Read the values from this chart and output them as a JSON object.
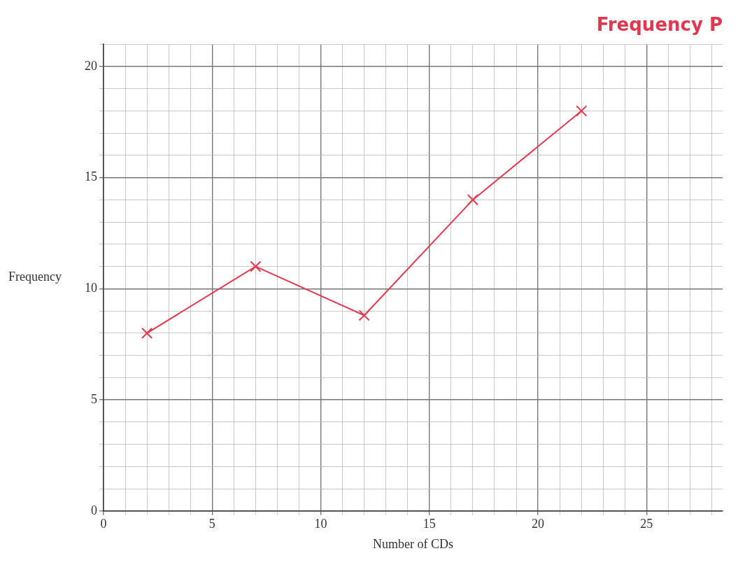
{
  "chart_data": {
    "type": "line",
    "title": "Frequency P",
    "xlabel": "Number of CDs",
    "ylabel": "Frequency",
    "x": [
      2,
      7,
      12,
      17,
      22
    ],
    "series": [
      {
        "color": "#e0394f",
        "values": [
          8,
          11,
          8.8,
          14,
          18
        ]
      }
    ],
    "xlim": [
      0,
      28.5
    ],
    "ylim": [
      0,
      21
    ],
    "xticks": [
      0,
      {
        "value": 1,
        "label": null
      },
      {
        "value": 2,
        "label": null
      },
      {
        "value": 3,
        "label": null
      },
      {
        "value": 4,
        "label": null
      },
      5,
      {
        "value": 6,
        "label": null
      },
      {
        "value": 7,
        "label": null
      },
      {
        "value": 8,
        "label": null
      },
      {
        "value": 9,
        "label": null
      },
      10,
      {
        "value": 11,
        "label": null
      },
      {
        "value": 12,
        "label": null
      },
      {
        "value": 13,
        "label": null
      },
      {
        "value": 14,
        "label": null
      },
      15,
      {
        "value": 16,
        "label": null
      },
      {
        "value": 17,
        "label": null
      },
      {
        "value": 18,
        "label": null
      },
      {
        "value": 19,
        "label": null
      },
      20,
      {
        "value": 21,
        "label": null
      },
      {
        "value": 22,
        "label": null
      },
      {
        "value": 23,
        "label": null
      },
      {
        "value": 24,
        "label": null
      },
      25,
      {
        "value": 26,
        "label": null
      },
      {
        "value": 27,
        "label": null
      },
      {
        "value": 28,
        "label": null
      }
    ],
    "yticks": [
      0,
      {
        "value": 1,
        "label": null
      },
      {
        "value": 2,
        "label": null
      },
      {
        "value": 3,
        "label": null
      },
      {
        "value": 4,
        "label": null
      },
      5,
      {
        "value": 6,
        "label": null
      },
      {
        "value": 7,
        "label": null
      },
      {
        "value": 8,
        "label": null
      },
      {
        "value": 9,
        "label": null
      },
      10,
      {
        "value": 11,
        "label": null
      },
      {
        "value": 12,
        "label": null
      },
      {
        "value": 13,
        "label": null
      },
      {
        "value": 14,
        "label": null
      },
      15,
      {
        "value": 16,
        "label": null
      },
      {
        "value": 17,
        "label": null
      },
      {
        "value": 18,
        "label": null
      },
      {
        "value": 19,
        "label": null
      },
      20,
      {
        "value": 21,
        "label": null
      }
    ],
    "grid": true,
    "legend": false,
    "marker": "cross",
    "line_style": "solid"
  }
}
